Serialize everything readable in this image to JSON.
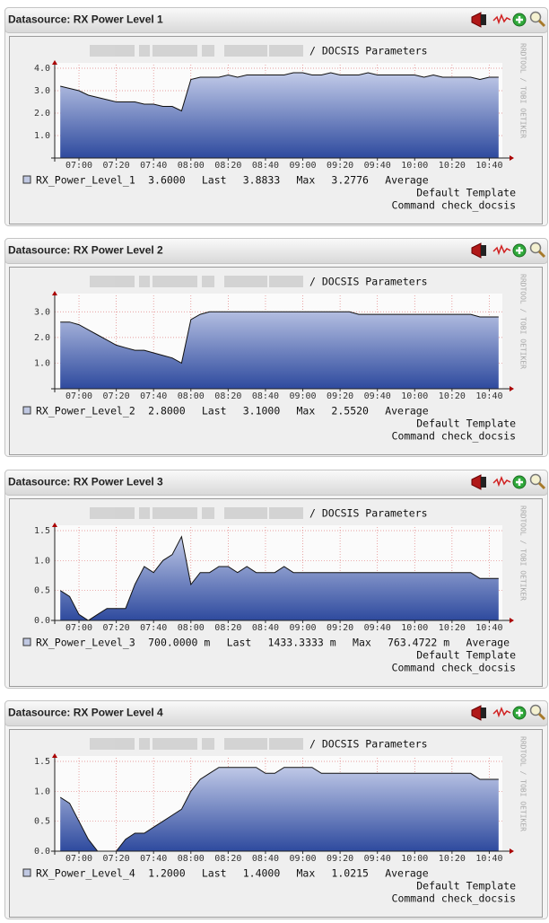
{
  "panels": [
    {
      "header": "Datasource: RX Power Level 1",
      "footer": [
        "Default Template",
        "Command check_docsis"
      ]
    },
    {
      "header": "Datasource: RX Power Level 2",
      "footer": [
        "Default Template",
        "Command check_docsis"
      ]
    },
    {
      "header": "Datasource: RX Power Level 3",
      "footer": [
        "Default Template",
        "Command check_docsis"
      ]
    },
    {
      "header": "Datasource: RX Power Level 4",
      "footer": [
        "Default Template",
        "Command check_docsis"
      ]
    }
  ],
  "chart_data": [
    {
      "type": "area",
      "title": "/ DOCSIS Parameters",
      "side_text": "RRDTOOL / TOBI OETIKER",
      "x": [
        "06:50",
        "06:55",
        "07:00",
        "07:05",
        "07:10",
        "07:15",
        "07:20",
        "07:25",
        "07:30",
        "07:35",
        "07:40",
        "07:45",
        "07:50",
        "07:55",
        "08:00",
        "08:05",
        "08:10",
        "08:15",
        "08:20",
        "08:25",
        "08:30",
        "08:35",
        "08:40",
        "08:45",
        "08:50",
        "08:55",
        "09:00",
        "09:05",
        "09:10",
        "09:15",
        "09:20",
        "09:25",
        "09:30",
        "09:35",
        "09:40",
        "09:45",
        "09:50",
        "09:55",
        "10:00",
        "10:05",
        "10:10",
        "10:15",
        "10:20",
        "10:25",
        "10:30",
        "10:35",
        "10:40",
        "10:45"
      ],
      "xlim": [
        "06:47",
        "10:47"
      ],
      "xticks": [
        "07:00",
        "07:20",
        "07:40",
        "08:00",
        "08:20",
        "08:40",
        "09:00",
        "09:20",
        "09:40",
        "10:00",
        "10:20",
        "10:40"
      ],
      "ylim": [
        0,
        4
      ],
      "yticks": [
        {
          "value": 1,
          "label": "1.0"
        },
        {
          "value": 2,
          "label": "2.0"
        },
        {
          "value": 3,
          "label": "3.0"
        },
        {
          "value": 4,
          "label": "4.0"
        }
      ],
      "grid": true,
      "series": [
        {
          "name": "RX_Power_Level_1",
          "color": "#2e4a9e",
          "values": [
            3.2,
            3.1,
            3.0,
            2.8,
            2.7,
            2.6,
            2.5,
            2.5,
            2.5,
            2.4,
            2.4,
            2.3,
            2.3,
            2.1,
            3.5,
            3.6,
            3.6,
            3.6,
            3.7,
            3.6,
            3.7,
            3.7,
            3.7,
            3.7,
            3.7,
            3.8,
            3.8,
            3.7,
            3.7,
            3.8,
            3.7,
            3.7,
            3.7,
            3.8,
            3.7,
            3.7,
            3.7,
            3.7,
            3.7,
            3.6,
            3.7,
            3.6,
            3.6,
            3.6,
            3.6,
            3.5,
            3.6,
            3.6
          ]
        }
      ],
      "legend_values": [
        "3.6000",
        "Last",
        "3.8833",
        "Max",
        "3.2776",
        "Average"
      ]
    },
    {
      "type": "area",
      "title": "/ DOCSIS Parameters",
      "side_text": "RRDTOOL / TOBI OETIKER",
      "x": [
        "06:50",
        "06:55",
        "07:00",
        "07:05",
        "07:10",
        "07:15",
        "07:20",
        "07:25",
        "07:30",
        "07:35",
        "07:40",
        "07:45",
        "07:50",
        "07:55",
        "08:00",
        "08:05",
        "08:10",
        "08:15",
        "08:20",
        "08:25",
        "08:30",
        "08:35",
        "08:40",
        "08:45",
        "08:50",
        "08:55",
        "09:00",
        "09:05",
        "09:10",
        "09:15",
        "09:20",
        "09:25",
        "09:30",
        "09:35",
        "09:40",
        "09:45",
        "09:50",
        "09:55",
        "10:00",
        "10:05",
        "10:10",
        "10:15",
        "10:20",
        "10:25",
        "10:30",
        "10:35",
        "10:40",
        "10:45"
      ],
      "xlim": [
        "06:47",
        "10:47"
      ],
      "xticks": [
        "07:00",
        "07:20",
        "07:40",
        "08:00",
        "08:20",
        "08:40",
        "09:00",
        "09:20",
        "09:40",
        "10:00",
        "10:20",
        "10:40"
      ],
      "ylim": [
        0,
        3.5
      ],
      "yticks": [
        {
          "value": 1,
          "label": "1.0"
        },
        {
          "value": 2,
          "label": "2.0"
        },
        {
          "value": 3,
          "label": "3.0"
        }
      ],
      "grid": true,
      "series": [
        {
          "name": "RX_Power_Level_2",
          "color": "#2e4a9e",
          "values": [
            2.6,
            2.6,
            2.5,
            2.3,
            2.1,
            1.9,
            1.7,
            1.6,
            1.5,
            1.5,
            1.4,
            1.3,
            1.2,
            1.0,
            2.7,
            2.9,
            3.0,
            3.0,
            3.0,
            3.0,
            3.0,
            3.0,
            3.0,
            3.0,
            3.0,
            3.0,
            3.0,
            3.0,
            3.0,
            3.0,
            3.0,
            3.0,
            2.9,
            2.9,
            2.9,
            2.9,
            2.9,
            2.9,
            2.9,
            2.9,
            2.9,
            2.9,
            2.9,
            2.9,
            2.9,
            2.8,
            2.8,
            2.8
          ]
        }
      ],
      "legend_values": [
        "2.8000",
        "Last",
        "3.1000",
        "Max",
        "2.5520",
        "Average"
      ]
    },
    {
      "type": "area",
      "title": "/ DOCSIS Parameters",
      "side_text": "RRDTOOL / TOBI OETIKER",
      "x": [
        "06:50",
        "06:55",
        "07:00",
        "07:05",
        "07:10",
        "07:15",
        "07:20",
        "07:25",
        "07:30",
        "07:35",
        "07:40",
        "07:45",
        "07:50",
        "07:55",
        "08:00",
        "08:05",
        "08:10",
        "08:15",
        "08:20",
        "08:25",
        "08:30",
        "08:35",
        "08:40",
        "08:45",
        "08:50",
        "08:55",
        "09:00",
        "09:05",
        "09:10",
        "09:15",
        "09:20",
        "09:25",
        "09:30",
        "09:35",
        "09:40",
        "09:45",
        "09:50",
        "09:55",
        "10:00",
        "10:05",
        "10:10",
        "10:15",
        "10:20",
        "10:25",
        "10:30",
        "10:35",
        "10:40",
        "10:45"
      ],
      "xlim": [
        "06:47",
        "10:47"
      ],
      "xticks": [
        "07:00",
        "07:20",
        "07:40",
        "08:00",
        "08:20",
        "08:40",
        "09:00",
        "09:20",
        "09:40",
        "10:00",
        "10:20",
        "10:40"
      ],
      "ylim": [
        0,
        1.5
      ],
      "yticks": [
        {
          "value": 0,
          "label": "0.0"
        },
        0.5,
        {
          "value": 1,
          "label": "1.0"
        },
        1.5
      ],
      "grid": true,
      "series": [
        {
          "name": "RX_Power_Level_3",
          "color": "#2e4a9e",
          "values": [
            0.5,
            0.4,
            0.1,
            0.0,
            0.1,
            0.2,
            0.2,
            0.2,
            0.6,
            0.9,
            0.8,
            1.0,
            1.1,
            1.4,
            0.6,
            0.8,
            0.8,
            0.9,
            0.9,
            0.8,
            0.9,
            0.8,
            0.8,
            0.8,
            0.9,
            0.8,
            0.8,
            0.8,
            0.8,
            0.8,
            0.8,
            0.8,
            0.8,
            0.8,
            0.8,
            0.8,
            0.8,
            0.8,
            0.8,
            0.8,
            0.8,
            0.8,
            0.8,
            0.8,
            0.8,
            0.7,
            0.7,
            0.7
          ]
        }
      ],
      "legend_values": [
        "700.0000 m",
        "Last",
        "1433.3333 m",
        "Max",
        "763.4722 m",
        "Average"
      ]
    },
    {
      "type": "area",
      "title": "/ DOCSIS Parameters",
      "side_text": "RRDTOOL / TOBI OETIKER",
      "x": [
        "06:50",
        "06:55",
        "07:00",
        "07:05",
        "07:10",
        "07:15",
        "07:20",
        "07:25",
        "07:30",
        "07:35",
        "07:40",
        "07:45",
        "07:50",
        "07:55",
        "08:00",
        "08:05",
        "08:10",
        "08:15",
        "08:20",
        "08:25",
        "08:30",
        "08:35",
        "08:40",
        "08:45",
        "08:50",
        "08:55",
        "09:00",
        "09:05",
        "09:10",
        "09:15",
        "09:20",
        "09:25",
        "09:30",
        "09:35",
        "09:40",
        "09:45",
        "09:50",
        "09:55",
        "10:00",
        "10:05",
        "10:10",
        "10:15",
        "10:20",
        "10:25",
        "10:30",
        "10:35",
        "10:40",
        "10:45"
      ],
      "xlim": [
        "06:47",
        "10:47"
      ],
      "xticks": [
        "07:00",
        "07:20",
        "07:40",
        "08:00",
        "08:20",
        "08:40",
        "09:00",
        "09:20",
        "09:40",
        "10:00",
        "10:20",
        "10:40"
      ],
      "ylim": [
        0,
        1.5
      ],
      "yticks": [
        {
          "value": 0,
          "label": "0.0"
        },
        0.5,
        {
          "value": 1,
          "label": "1.0"
        },
        1.5
      ],
      "grid": true,
      "series": [
        {
          "name": "RX_Power_Level_4",
          "color": "#2e4a9e",
          "values": [
            0.9,
            0.8,
            0.5,
            0.2,
            0.0,
            0.0,
            0.0,
            0.2,
            0.3,
            0.3,
            0.4,
            0.5,
            0.6,
            0.7,
            1.0,
            1.2,
            1.3,
            1.4,
            1.4,
            1.4,
            1.4,
            1.4,
            1.3,
            1.3,
            1.4,
            1.4,
            1.4,
            1.4,
            1.3,
            1.3,
            1.3,
            1.3,
            1.3,
            1.3,
            1.3,
            1.3,
            1.3,
            1.3,
            1.3,
            1.3,
            1.3,
            1.3,
            1.3,
            1.3,
            1.3,
            1.2,
            1.2,
            1.2
          ]
        }
      ],
      "legend_values": [
        "1.2000",
        "Last",
        "1.4000",
        "Max",
        "1.0215",
        "Average"
      ]
    }
  ]
}
